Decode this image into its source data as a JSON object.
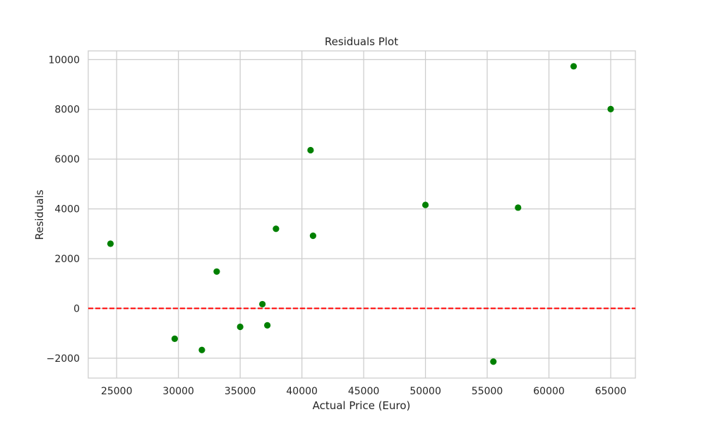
{
  "chart_data": {
    "type": "scatter",
    "title": "Residuals Plot",
    "xlabel": "Actual Price (Euro)",
    "ylabel": "Residuals",
    "xlim": [
      22700,
      67000
    ],
    "ylim": [
      -2800,
      10350
    ],
    "x_ticks": [
      25000,
      30000,
      35000,
      40000,
      45000,
      50000,
      55000,
      60000,
      65000
    ],
    "y_ticks": [
      -2000,
      0,
      2000,
      4000,
      6000,
      8000,
      10000
    ],
    "x_tick_labels": [
      "25000",
      "30000",
      "35000",
      "40000",
      "45000",
      "50000",
      "55000",
      "60000",
      "65000"
    ],
    "y_tick_labels": [
      "−2000",
      "0",
      "2000",
      "4000",
      "6000",
      "8000",
      "10000"
    ],
    "grid": true,
    "reference_line": {
      "y": 0,
      "style": "dashed",
      "color": "#ff0000"
    },
    "marker_color": "#008000",
    "points": [
      {
        "x": 24500,
        "y": 2600
      },
      {
        "x": 29700,
        "y": -1220
      },
      {
        "x": 31900,
        "y": -1670
      },
      {
        "x": 33100,
        "y": 1480
      },
      {
        "x": 35000,
        "y": -740
      },
      {
        "x": 36800,
        "y": 170
      },
      {
        "x": 37200,
        "y": -680
      },
      {
        "x": 37900,
        "y": 3200
      },
      {
        "x": 40700,
        "y": 6360
      },
      {
        "x": 40900,
        "y": 2920
      },
      {
        "x": 50000,
        "y": 4160
      },
      {
        "x": 55500,
        "y": -2140
      },
      {
        "x": 57500,
        "y": 4050
      },
      {
        "x": 62000,
        "y": 9730
      },
      {
        "x": 65000,
        "y": 8010
      }
    ]
  }
}
